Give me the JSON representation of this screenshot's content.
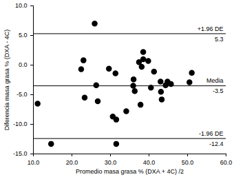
{
  "chart_data": {
    "type": "scatter",
    "x_label": "Promedio masa grasa % (DXA + 4C) /2",
    "y_label": "Diferencia masa grasa % (DXA - 4C)",
    "color": "#000000",
    "marker": "circle",
    "x": [
      11.1,
      14.6,
      22.4,
      23.0,
      23.3,
      25.9,
      26.3,
      26.7,
      29.6,
      30.6,
      31.5,
      31.5,
      31.3,
      34.1,
      35.9,
      36.3,
      37.4,
      38.1,
      37.8,
      38.5,
      38.5,
      39.8,
      40.5,
      41.3,
      43.0,
      43.1,
      43.3,
      44.3,
      44.8,
      45.7,
      50.5,
      51.1,
      36.0
    ],
    "values": [
      -6.5,
      -13.3,
      -0.7,
      0.8,
      -5.5,
      7.0,
      -3.4,
      -6.1,
      -0.6,
      -8.7,
      -9.2,
      -13.3,
      -1.4,
      -7.8,
      -3.5,
      -4.4,
      0.5,
      -0.3,
      -6.7,
      2.2,
      1.0,
      0.7,
      -3.8,
      -1.1,
      -2.8,
      -4.5,
      -5.8,
      -3.4,
      -2.8,
      -3.2,
      -2.9,
      -1.3,
      -2.4
    ],
    "reference_lines": [
      {
        "name": "+1.96 DE",
        "value": 5.3,
        "value_label": "5.3"
      },
      {
        "name": "Media",
        "value": -3.5,
        "value_label": "-3.5"
      },
      {
        "name": "-1.96 DE",
        "value": -12.4,
        "value_label": "-12.4"
      }
    ],
    "xlim": [
      10,
      60
    ],
    "xticks": [
      {
        "value": 10,
        "label": "10.0"
      },
      {
        "value": 20,
        "label": "20.0"
      },
      {
        "value": 30,
        "label": "30.0"
      },
      {
        "value": 40,
        "label": "40.0"
      },
      {
        "value": 50,
        "label": "50.0"
      },
      {
        "value": 60,
        "label": "60.0"
      }
    ],
    "ylim": [
      -15,
      10
    ],
    "yticks": [
      {
        "value": -15,
        "label": "-15.0"
      },
      {
        "value": -10,
        "label": "-10.0"
      },
      {
        "value": -5,
        "label": "-5.0"
      },
      {
        "value": 0,
        "label": "0.0"
      },
      {
        "value": 5,
        "label": "5.0"
      },
      {
        "value": 10,
        "label": "10.0"
      }
    ],
    "grid": false
  }
}
